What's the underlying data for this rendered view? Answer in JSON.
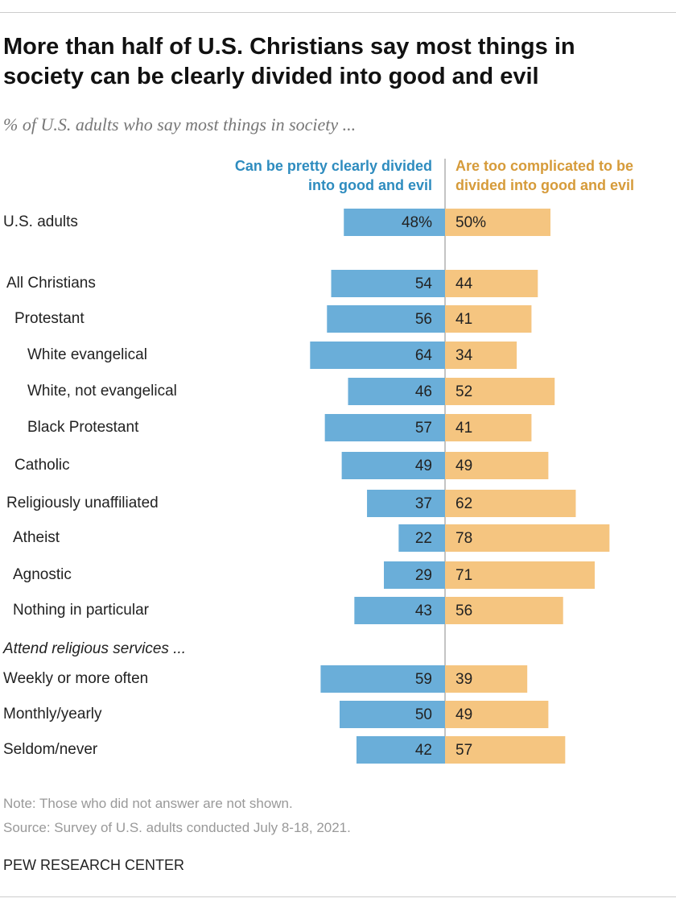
{
  "chart_data": {
    "type": "diverging-bar",
    "title": "More than half of U.S. Christians say most things in society can be clearly divided into good and evil",
    "subtitle": "% of U.S. adults who say most things in society ...",
    "categories": [
      "U.S. adults",
      "All Christians",
      "Protestant",
      "White evangelical",
      "White, not evangelical",
      "Black Protestant",
      "Catholic",
      "Religiously unaffiliated",
      "Atheist",
      "Agnostic",
      "Nothing in particular",
      "Attend religious services ...",
      "Weekly or more often",
      "Monthly/yearly",
      "Seldom/never"
    ],
    "series": [
      {
        "name": "Can be pretty clearly divided into good and evil",
        "color": "#6aaed9",
        "values": [
          48,
          54,
          56,
          64,
          46,
          57,
          49,
          37,
          22,
          29,
          43,
          null,
          59,
          50,
          42
        ],
        "value_labels": [
          "48%",
          "54",
          "56",
          "64",
          "46",
          "57",
          "49",
          "37",
          "22",
          "29",
          "43",
          null,
          "59",
          "50",
          "42"
        ]
      },
      {
        "name": "Are too complicated to be divided into good and evil",
        "color": "#f5c580",
        "values": [
          50,
          44,
          41,
          34,
          52,
          41,
          49,
          62,
          78,
          71,
          56,
          null,
          39,
          49,
          57
        ],
        "value_labels": [
          "50%",
          "44",
          "41",
          "34",
          "52",
          "41",
          "49",
          "62",
          "78",
          "71",
          "56",
          null,
          "39",
          "49",
          "57"
        ]
      }
    ],
    "note": "Note: Those who did not answer are not shown.",
    "source": "Source: Survey of U.S. adults conducted July 8-18, 2021.",
    "credit": "PEW RESEARCH CENTER"
  }
}
